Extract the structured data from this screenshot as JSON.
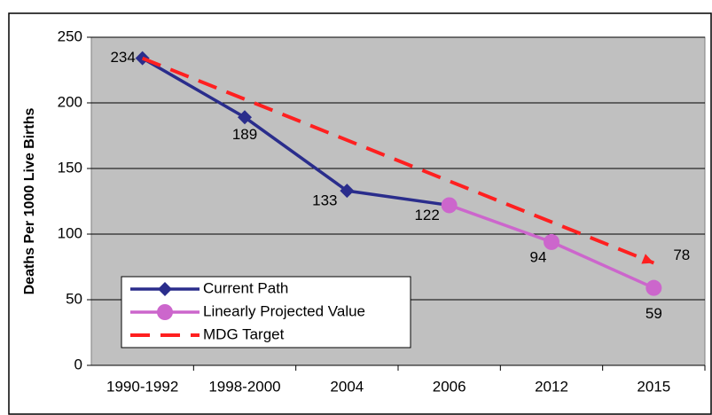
{
  "chart_data": {
    "type": "line",
    "y_label": "Deaths Per 1000 Live Births",
    "categories": [
      "1990-1992",
      "1998-2000",
      "2004",
      "2006",
      "2012",
      "2015"
    ],
    "series": [
      {
        "name": "Current Path",
        "color": "#2a2d8c",
        "marker": "diamond",
        "dash": false,
        "values": [
          234,
          189,
          133,
          122,
          null,
          null
        ]
      },
      {
        "name": "Linearly Projected Value",
        "color": "#cc66cc",
        "marker": "circle",
        "dash": false,
        "values": [
          null,
          null,
          null,
          122,
          94,
          59
        ]
      },
      {
        "name": "MDG Target",
        "color": "#ff2020",
        "marker": "arrow",
        "dash": true,
        "values": [
          234,
          null,
          null,
          null,
          null,
          78
        ]
      }
    ],
    "ylim": [
      0,
      250
    ],
    "yticks": [
      0,
      50,
      100,
      150,
      200,
      250
    ],
    "grid": true,
    "legend": "lower left"
  }
}
